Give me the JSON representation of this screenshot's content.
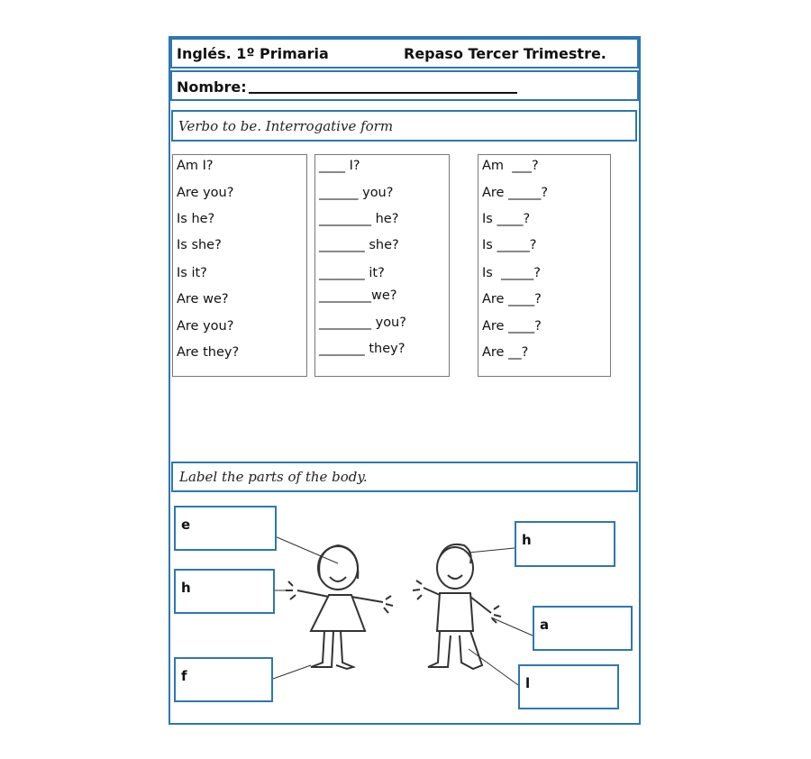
{
  "header": {
    "subject": "Inglés. 1º Primaria",
    "title": "Repaso Tercer Trimestre.",
    "name_label": "Nombre:"
  },
  "section1": {
    "title": "Verbo to be. Interrogative form",
    "columns": [
      [
        "Am I?",
        "Are you?",
        "Is he?",
        "Is she?",
        "Is it?",
        "Are we?",
        "Are you?",
        "Are they?"
      ],
      [
        "____ I?",
        "______ you?",
        "________ he?",
        "_______ she?",
        "_______ it?",
        "________we?",
        "________ you?",
        "_______ they?"
      ],
      [
        "Am  ___?",
        "Are _____?",
        "Is ____?",
        "Is _____?",
        "Is  _____?",
        "Are ____?",
        "Are ____?",
        "Are __?"
      ]
    ]
  },
  "section2": {
    "title": "Label the parts of the body.",
    "labels_left": [
      "e",
      "h",
      "f"
    ],
    "labels_right": [
      "h",
      "a",
      "l"
    ]
  },
  "colors": {
    "border": "#2e77b0"
  }
}
